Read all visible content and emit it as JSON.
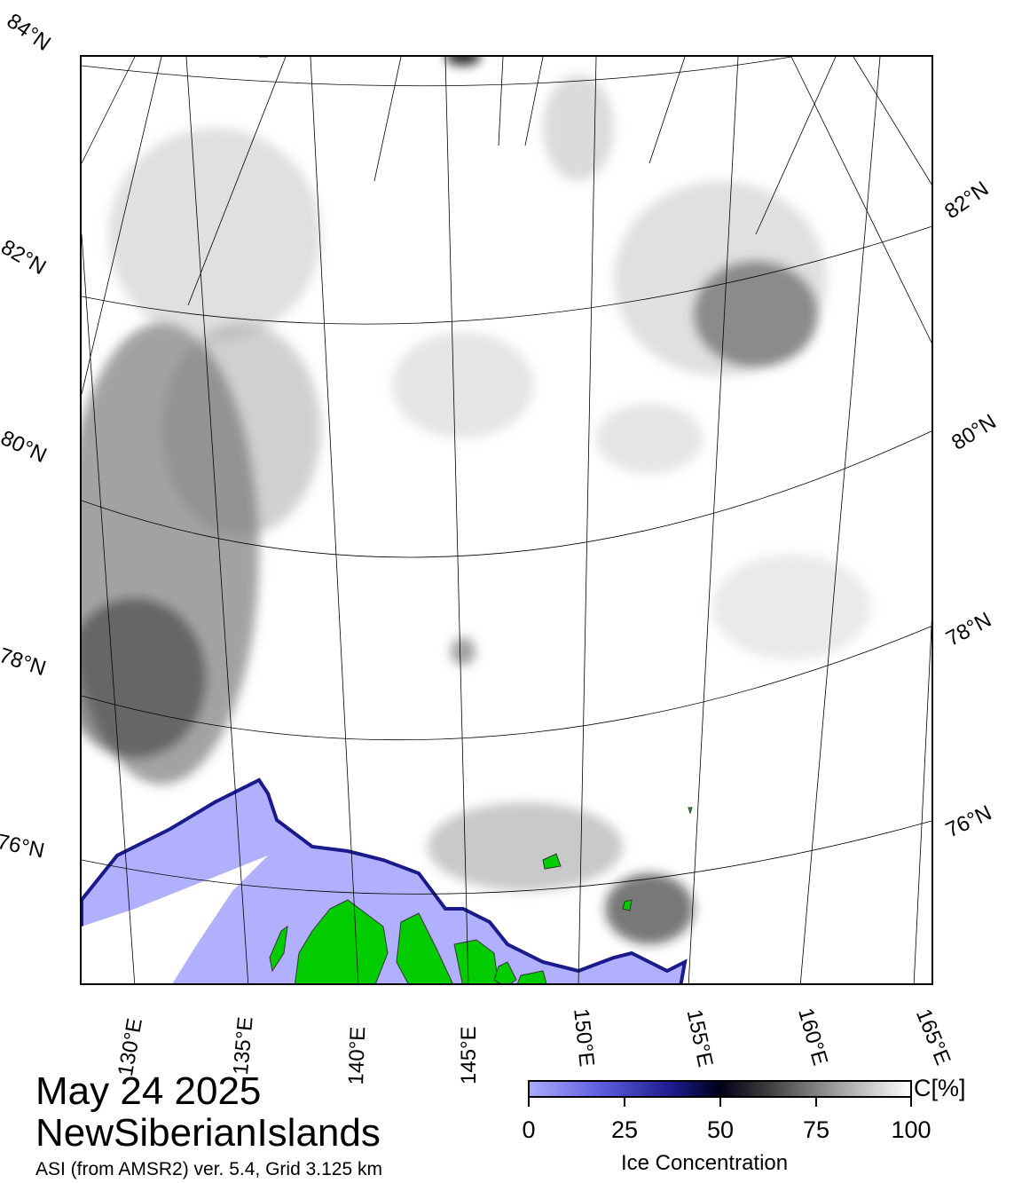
{
  "map": {
    "lat_labels_left": [
      "84°N",
      "82°N",
      "80°N",
      "78°N",
      "76°N"
    ],
    "lat_labels_right": [
      "82°N",
      "80°N",
      "78°N",
      "76°N"
    ],
    "lon_labels": [
      "130°E",
      "135°E",
      "140°E",
      "145°E",
      "150°E",
      "155°E",
      "160°E",
      "165°E"
    ]
  },
  "header": {
    "date": "May 24 2025",
    "region": "NewSiberianIslands",
    "source": "ASI (from AMSR2) ver. 5.4,  Grid 3.125 km"
  },
  "colorbar": {
    "ticks": [
      "0",
      "25",
      "50",
      "75",
      "100"
    ],
    "unit": "C[%]",
    "title": "Ice Concentration"
  },
  "colors": {
    "land": "#00cc00",
    "open_water": "#b0b0ff",
    "coast_edge": "#1a1a8a",
    "grid": "#000000"
  }
}
